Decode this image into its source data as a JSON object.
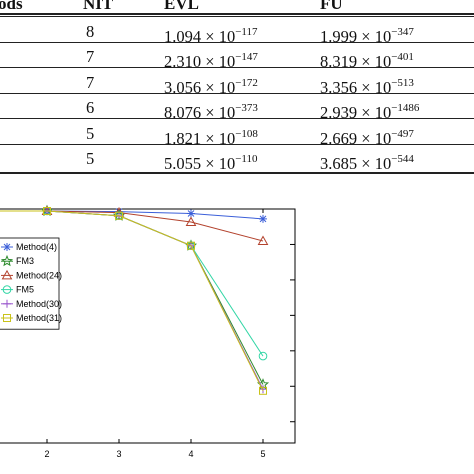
{
  "table": {
    "headers": {
      "method": "ods",
      "nit": "NIT",
      "evl": "EVL",
      "fu": "FU"
    },
    "times_sign": "×",
    "rows": [
      {
        "nit": "8",
        "evl_mant": "1.094",
        "evl_exp": "−117",
        "fu_mant": "1.999",
        "fu_exp": "−347"
      },
      {
        "nit": "7",
        "evl_mant": "2.310",
        "evl_exp": "−147",
        "fu_mant": "8.319",
        "fu_exp": "−401"
      },
      {
        "nit": "7",
        "evl_mant": "3.056",
        "evl_exp": "−172",
        "fu_mant": "3.356",
        "fu_exp": "−513"
      },
      {
        "nit": "6",
        "evl_mant": "8.076",
        "evl_exp": "−373",
        "fu_mant": "2.939",
        "fu_exp": "−1486"
      },
      {
        "nit": "5",
        "evl_mant": "1.821",
        "evl_exp": "−108",
        "fu_mant": "2.669",
        "fu_exp": "−497"
      },
      {
        "nit": "5",
        "evl_mant": "5.055",
        "evl_exp": "−110",
        "fu_mant": "3.685",
        "fu_exp": "−544"
      }
    ]
  },
  "chart_data": {
    "type": "line",
    "x": [
      1,
      2,
      3,
      4,
      5
    ],
    "xticks": [
      "2",
      "3",
      "4",
      "5"
    ],
    "ylim": [
      -7,
      0
    ],
    "legend_position": "left",
    "series": [
      {
        "name": "Method(4)",
        "color": "#3b5fd9",
        "marker": "asterisk",
        "values": [
          0,
          0,
          -0.02,
          -0.08,
          -0.25
        ]
      },
      {
        "name": "FM3",
        "color": "#2e8b2e",
        "marker": "star",
        "values": [
          0,
          0,
          -0.15,
          -1.1,
          -5.5
        ]
      },
      {
        "name": "Method(24)",
        "color": "#b3422d",
        "marker": "triangle",
        "values": [
          0,
          0,
          -0.05,
          -0.35,
          -0.95
        ]
      },
      {
        "name": "FM5",
        "color": "#33d6a6",
        "marker": "circle",
        "values": [
          0,
          0,
          -0.15,
          -1.1,
          -4.6
        ]
      },
      {
        "name": "Method(30)",
        "color": "#9955cc",
        "marker": "plus",
        "values": [
          0,
          0,
          -0.15,
          -1.1,
          -5.65
        ]
      },
      {
        "name": "Method(31)",
        "color": "#c9c21a",
        "marker": "square",
        "values": [
          0,
          0,
          -0.15,
          -1.1,
          -5.7
        ]
      }
    ]
  }
}
